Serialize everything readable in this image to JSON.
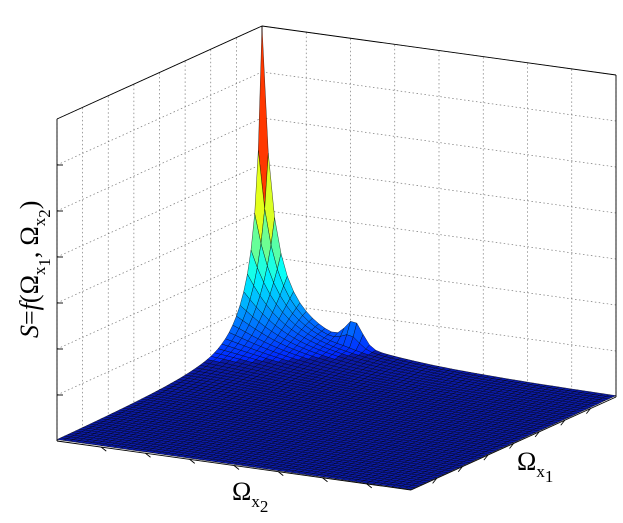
{
  "chart_data": {
    "type": "surface",
    "title": "",
    "xlabel": {
      "main": "Ω",
      "sub": "x",
      "subsub": "2"
    },
    "ylabel": {
      "main": "Ω",
      "sub": "x",
      "subsub": "1"
    },
    "zlabel": {
      "lhs": "S",
      "eq": "=",
      "func": "f",
      "arg1_main": "Ω",
      "arg1_sub": "x",
      "arg1_subsub": "1",
      "sep": ",",
      "arg2_main": "Ω",
      "arg2_sub": "x",
      "arg2_subsub": "2"
    },
    "tick_labels_shown": false,
    "grid": true,
    "colormap": "jet",
    "x_range": [
      0,
      1
    ],
    "y_range": [
      0,
      1
    ],
    "z_range": [
      0,
      1
    ],
    "surface": {
      "peak_location": {
        "x": 0.0,
        "y": 0.0
      },
      "peak_height": 1.0,
      "secondary_bump": {
        "x": 0.0,
        "y": 0.26,
        "height": 0.07
      },
      "floor_level": 0.0
    },
    "colors": {
      "floor": "#0a1aa8",
      "mesh": "#000000",
      "peak_hot": "#ff0000",
      "peak_warm": "#ffdd00",
      "peak_cool": "#3fd0e0"
    }
  }
}
